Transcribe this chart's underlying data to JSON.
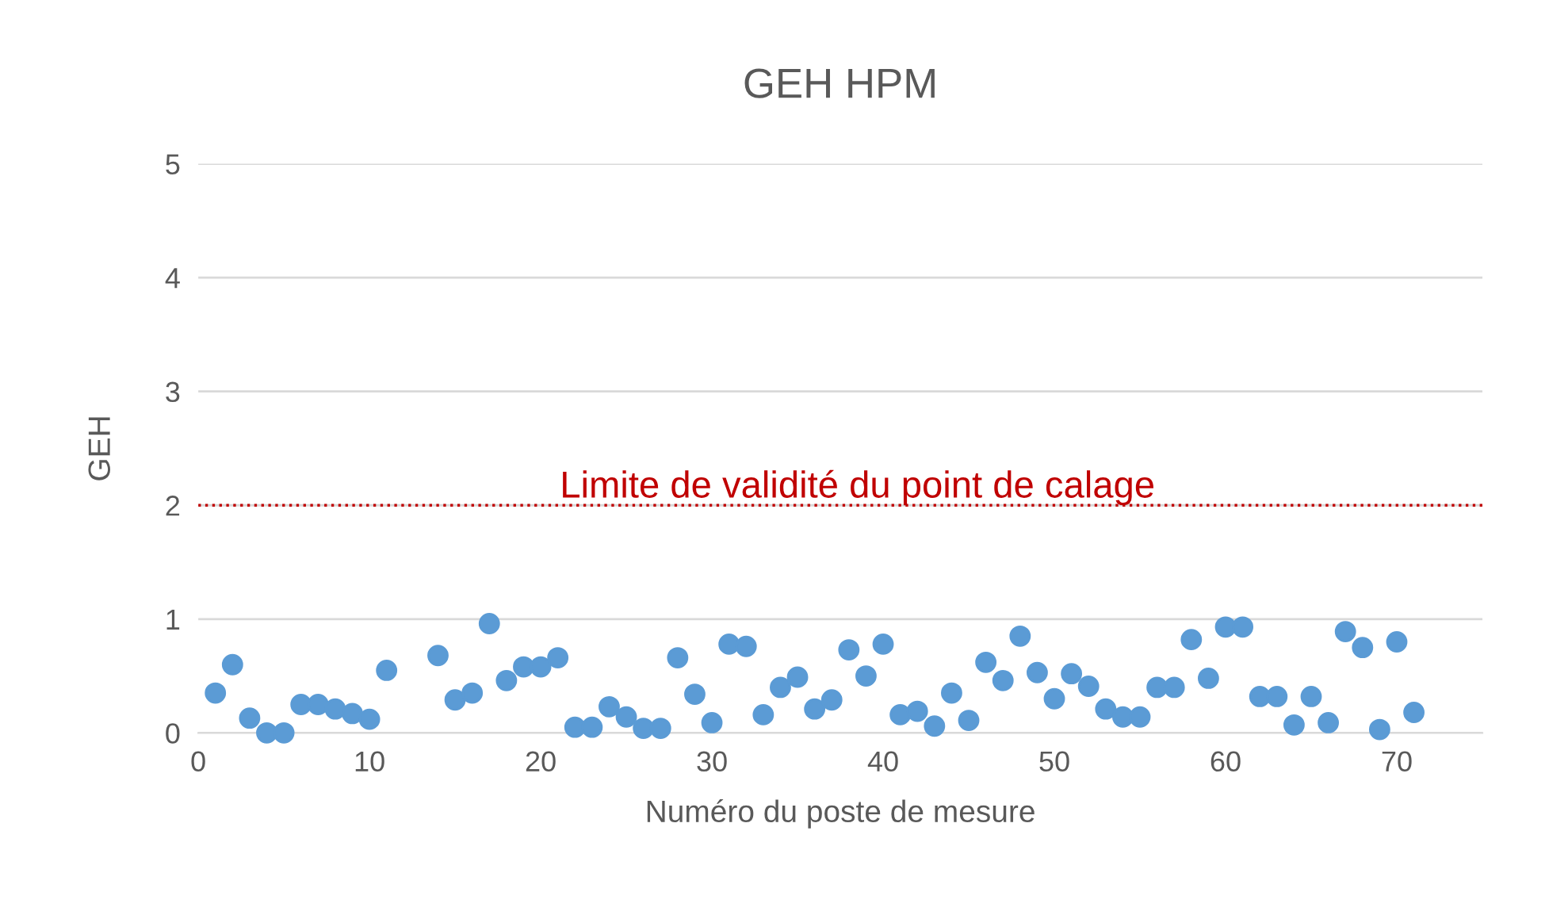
{
  "chart_data": {
    "type": "scatter",
    "title": "GEH HPM",
    "xlabel": "Numéro du poste de mesure",
    "ylabel": "GEH",
    "x": [
      1,
      2,
      3,
      4,
      5,
      6,
      7,
      8,
      9,
      10,
      11,
      14,
      15,
      16,
      17,
      18,
      19,
      20,
      21,
      22,
      23,
      24,
      25,
      26,
      27,
      28,
      29,
      30,
      31,
      32,
      33,
      34,
      35,
      36,
      37,
      38,
      39,
      40,
      41,
      42,
      43,
      44,
      45,
      46,
      47,
      48,
      49,
      50,
      51,
      52,
      53,
      54,
      55,
      56,
      57,
      58,
      59,
      60,
      61,
      62,
      63,
      64,
      65,
      66,
      67,
      68,
      69,
      70,
      71
    ],
    "series": [
      {
        "color": "#5b9bd5",
        "values": [
          0.35,
          0.6,
          0.13,
          0.0,
          0.0,
          0.25,
          0.25,
          0.21,
          0.17,
          0.12,
          0.55,
          0.68,
          0.29,
          0.35,
          0.96,
          0.46,
          0.58,
          0.58,
          0.66,
          0.05,
          0.05,
          0.23,
          0.14,
          0.04,
          0.04,
          0.66,
          0.34,
          0.09,
          0.78,
          0.76,
          0.16,
          0.4,
          0.49,
          0.21,
          0.29,
          0.73,
          0.5,
          0.78,
          0.16,
          0.19,
          0.06,
          0.35,
          0.11,
          0.62,
          0.46,
          0.85,
          0.53,
          0.3,
          0.52,
          0.41,
          0.21,
          0.14,
          0.14,
          0.4,
          0.4,
          0.82,
          0.48,
          0.93,
          0.93,
          0.32,
          0.32,
          0.07,
          0.32,
          0.09,
          0.89,
          0.75,
          0.03,
          0.8,
          0.18
        ]
      }
    ],
    "xlim": [
      0,
      75
    ],
    "xticks": [
      0,
      10,
      20,
      30,
      40,
      50,
      60,
      70
    ],
    "ylim": [
      0,
      5
    ],
    "yticks": [
      0,
      1,
      2,
      3,
      4,
      5
    ],
    "grid": "y",
    "marker": "circle",
    "ref_lines": [
      {
        "axis": "y",
        "value": 2,
        "label": "Limite de validité du point de calage",
        "color": "#c00000",
        "line_style": "dotted"
      }
    ]
  }
}
